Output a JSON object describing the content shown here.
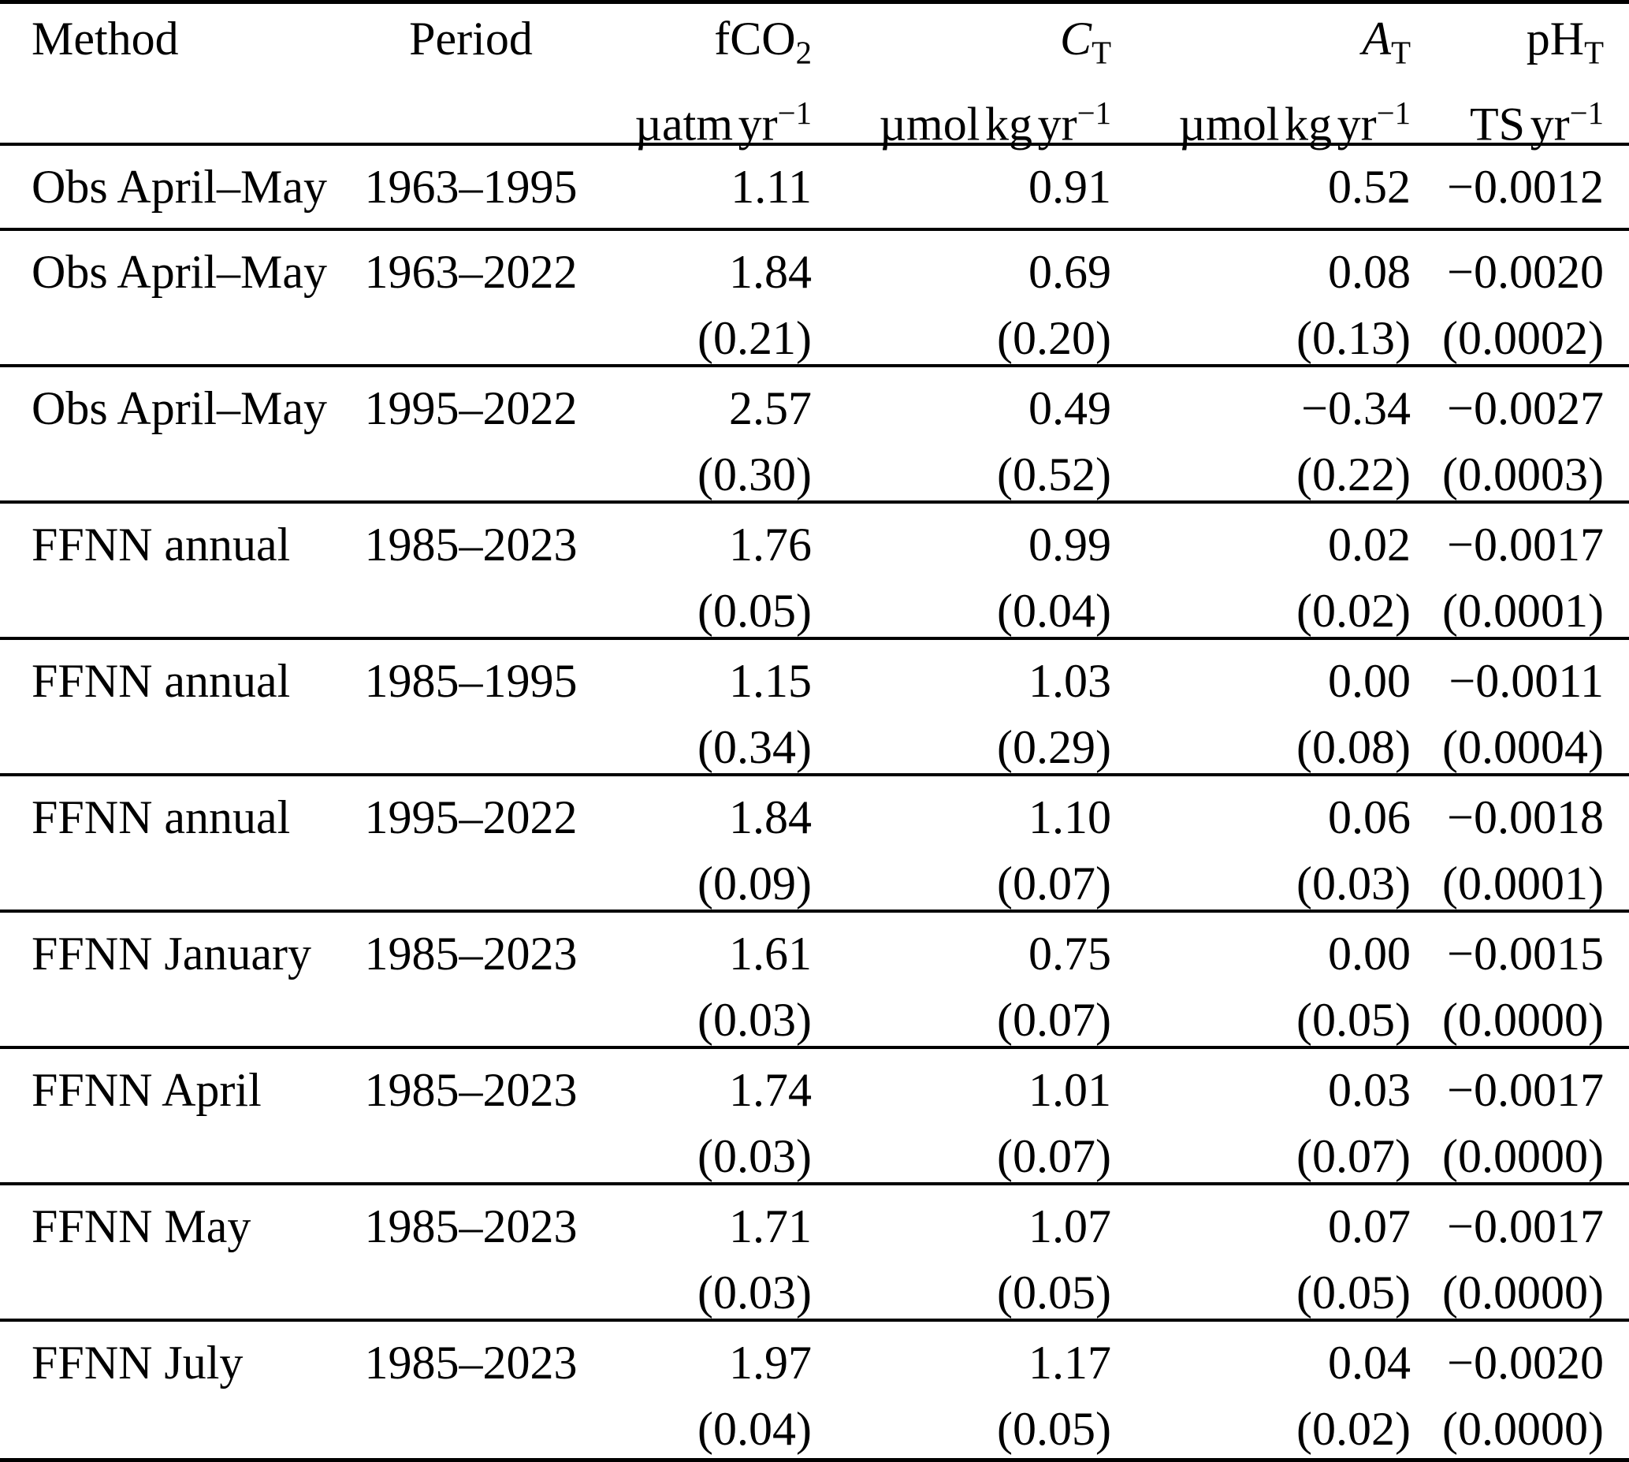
{
  "page": {
    "background": "#ffffff",
    "text_color": "#000000",
    "rule_color": "#000000"
  },
  "table": {
    "headers": [
      {
        "label": {
          "text": "Method"
        },
        "unit": null,
        "align": "left"
      },
      {
        "label": {
          "text": "Period"
        },
        "unit": null,
        "align": "center"
      },
      {
        "label": {
          "text": "fCO",
          "sub": "2"
        },
        "unit": {
          "text": "µatm yr",
          "sup": "−1"
        },
        "align": "right"
      },
      {
        "label": {
          "text": "C",
          "sub": "T",
          "italic": true
        },
        "unit": {
          "text": "µmol kg yr",
          "sup": "−1"
        },
        "align": "right"
      },
      {
        "label": {
          "text": "A",
          "sub": "T",
          "italic": true
        },
        "unit": {
          "text": "µmol kg yr",
          "sup": "−1"
        },
        "align": "right"
      },
      {
        "label": {
          "text": "pH",
          "sub": "T"
        },
        "unit": {
          "text": "TS yr",
          "sup": "−1"
        },
        "align": "right"
      }
    ],
    "rows": [
      {
        "method": "Obs April–May",
        "period": "1963–1995",
        "cells": [
          {
            "v": "1.11"
          },
          {
            "v": "0.91"
          },
          {
            "v": "0.52"
          },
          {
            "v": "−0.0012"
          }
        ]
      },
      {
        "method": "Obs April–May",
        "period": "1963–2022",
        "cells": [
          {
            "v": "1.84",
            "u": "(0.21)"
          },
          {
            "v": "0.69",
            "u": "(0.20)"
          },
          {
            "v": "0.08",
            "u": "(0.13)"
          },
          {
            "v": "−0.0020",
            "u": "(0.0002)"
          }
        ]
      },
      {
        "method": "Obs April–May",
        "period": "1995–2022",
        "cells": [
          {
            "v": "2.57",
            "u": "(0.30)"
          },
          {
            "v": "0.49",
            "u": "(0.52)"
          },
          {
            "v": "−0.34",
            "u": "(0.22)"
          },
          {
            "v": "−0.0027",
            "u": "(0.0003)"
          }
        ]
      },
      {
        "method": "FFNN annual",
        "period": "1985–2023",
        "cells": [
          {
            "v": "1.76",
            "u": "(0.05)"
          },
          {
            "v": "0.99",
            "u": "(0.04)"
          },
          {
            "v": "0.02",
            "u": "(0.02)"
          },
          {
            "v": "−0.0017",
            "u": "(0.0001)"
          }
        ]
      },
      {
        "method": "FFNN annual",
        "period": "1985–1995",
        "cells": [
          {
            "v": "1.15",
            "u": "(0.34)"
          },
          {
            "v": "1.03",
            "u": "(0.29)"
          },
          {
            "v": "0.00",
            "u": "(0.08)"
          },
          {
            "v": "−0.0011",
            "u": "(0.0004)"
          }
        ]
      },
      {
        "method": "FFNN annual",
        "period": "1995–2022",
        "cells": [
          {
            "v": "1.84",
            "u": "(0.09)"
          },
          {
            "v": "1.10",
            "u": "(0.07)"
          },
          {
            "v": "0.06",
            "u": "(0.03)"
          },
          {
            "v": "−0.0018",
            "u": "(0.0001)"
          }
        ]
      },
      {
        "method": "FFNN January",
        "period": "1985–2023",
        "cells": [
          {
            "v": "1.61",
            "u": "(0.03)"
          },
          {
            "v": "0.75",
            "u": "(0.07)"
          },
          {
            "v": "0.00",
            "u": "(0.05)"
          },
          {
            "v": "−0.0015",
            "u": "(0.0000)"
          }
        ]
      },
      {
        "method": "FFNN April",
        "period": "1985–2023",
        "cells": [
          {
            "v": "1.74",
            "u": "(0.03)"
          },
          {
            "v": "1.01",
            "u": "(0.07)"
          },
          {
            "v": "0.03",
            "u": "(0.07)"
          },
          {
            "v": "−0.0017",
            "u": "(0.0000)"
          }
        ]
      },
      {
        "method": "FFNN May",
        "period": "1985–2023",
        "cells": [
          {
            "v": "1.71",
            "u": "(0.03)"
          },
          {
            "v": "1.07",
            "u": "(0.05)"
          },
          {
            "v": "0.07",
            "u": "(0.05)"
          },
          {
            "v": "−0.0017",
            "u": "(0.0000)"
          }
        ]
      },
      {
        "method": "FFNN July",
        "period": "1985–2023",
        "cells": [
          {
            "v": "1.97",
            "u": "(0.04)"
          },
          {
            "v": "1.17",
            "u": "(0.05)"
          },
          {
            "v": "0.04",
            "u": "(0.02)"
          },
          {
            "v": "−0.0020",
            "u": "(0.0000)"
          }
        ]
      }
    ]
  }
}
